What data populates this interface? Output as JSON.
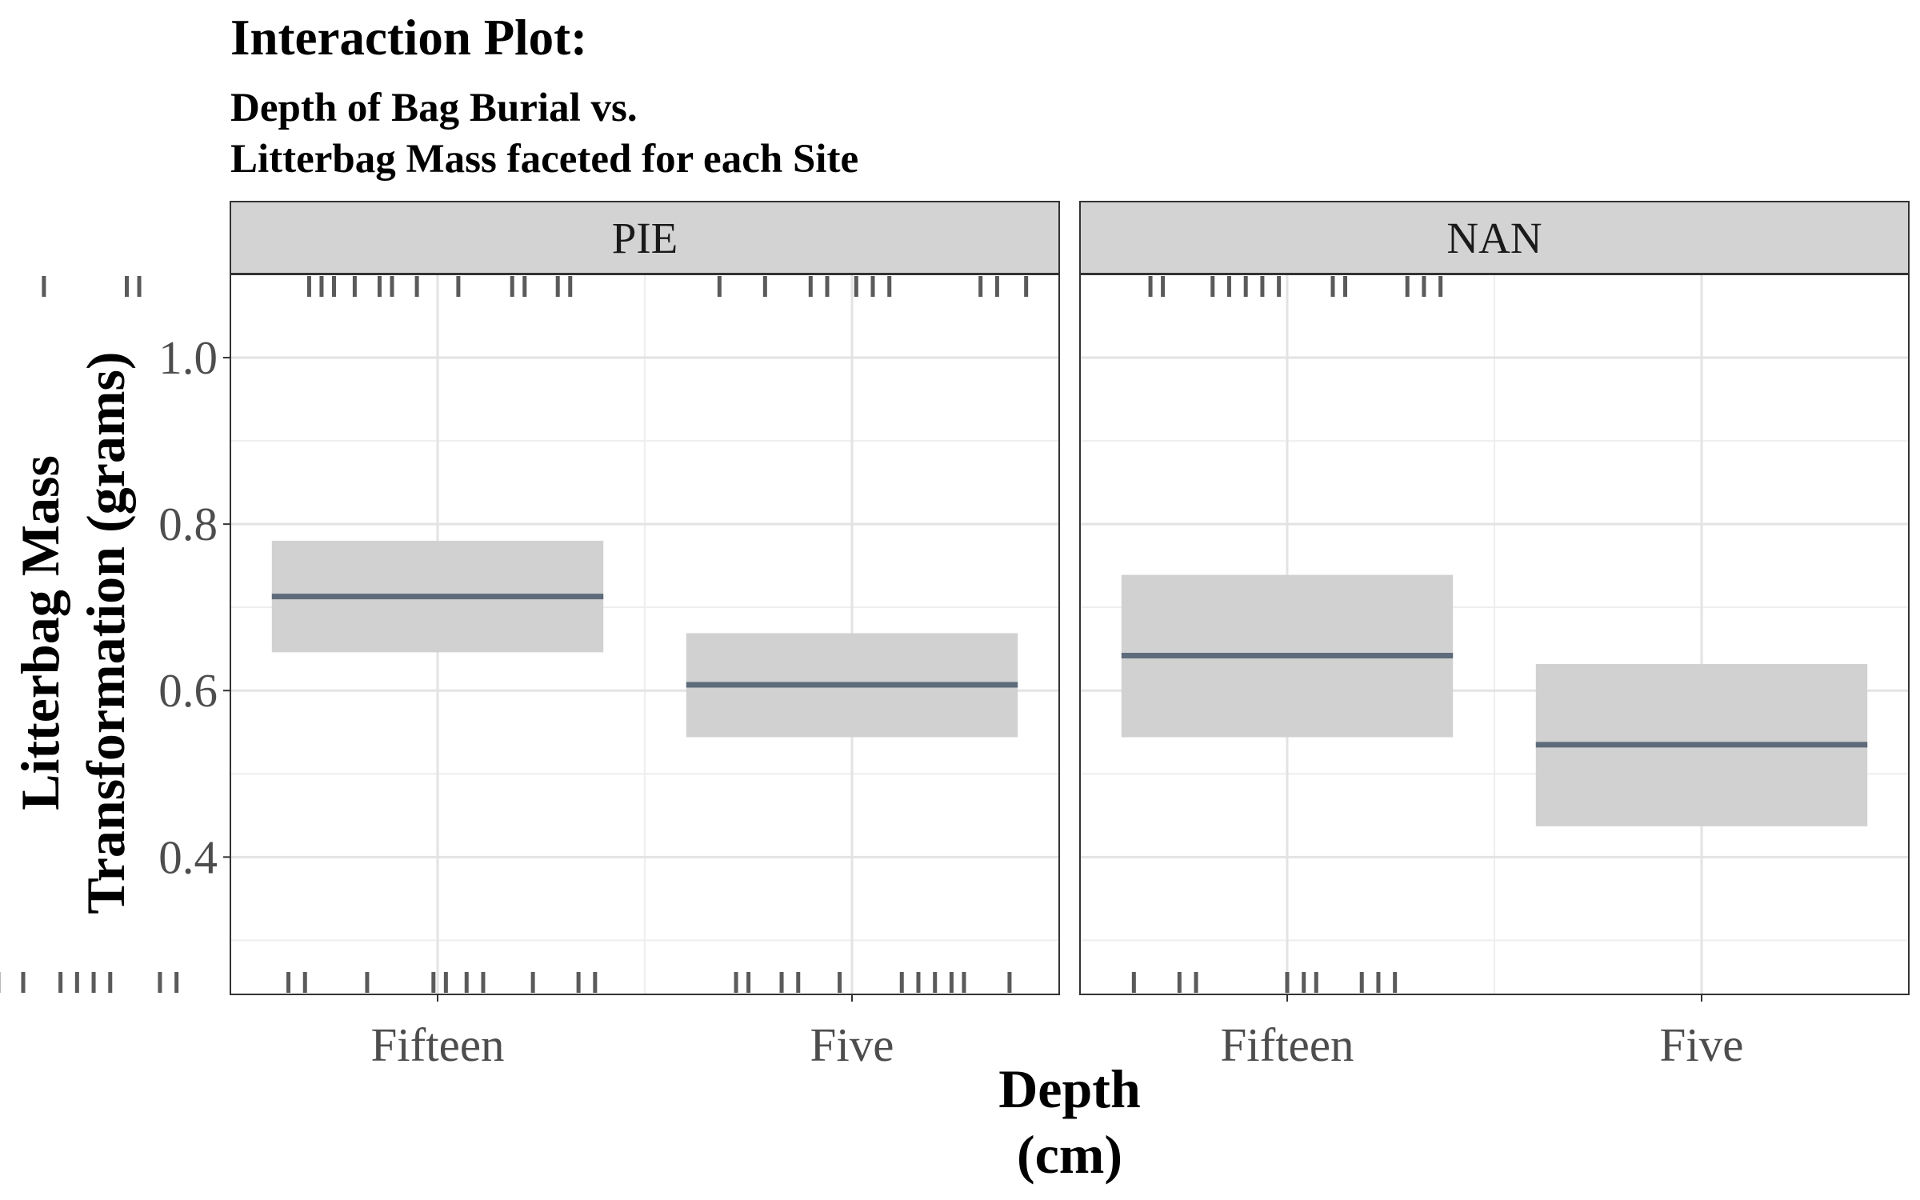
{
  "colors": {
    "panel_border": "#333333",
    "strip_fill": "#d3d3d3",
    "grid_major": "#e3e3e3",
    "grid_minor": "#eeeeee",
    "ci_band": "#d1d1d1",
    "mean_line": "#5d6b7a",
    "rug": "#5a5a5a"
  },
  "chart_data": {
    "type": "interaction",
    "title": "Interaction Plot:",
    "subtitle_lines": [
      "Depth of Bag Burial vs.",
      "Litterbag Mass faceted for each Site"
    ],
    "xlabel_lines": [
      "Depth",
      "(cm)"
    ],
    "ylabel_lines": [
      "Litterbag Mass",
      "Transformation (grams)"
    ],
    "categories": [
      "Fifteen",
      "Five"
    ],
    "ylim": [
      0.235,
      1.1
    ],
    "y_ticks": [
      0.4,
      0.6,
      0.8,
      1.0
    ],
    "y_tick_labels": [
      "0.4",
      "0.6",
      "0.8",
      "1.0"
    ],
    "grid": true,
    "facets": [
      {
        "name": "PIE",
        "points": [
          {
            "category": "Fifteen",
            "mean": 0.713,
            "lower": 0.646,
            "upper": 0.78
          },
          {
            "category": "Five",
            "mean": 0.607,
            "lower": 0.544,
            "upper": 0.669
          }
        ],
        "rug_top": [
          -0.37,
          -0.27,
          -0.24,
          0.05,
          0.25,
          0.28,
          0.69,
          0.72,
          0.75,
          0.8,
          0.86,
          0.89,
          0.95,
          1.05,
          1.18,
          1.21,
          1.29,
          1.32
        ],
        "rug_bottom": [
          -0.33,
          -0.21,
          -0.18,
          -0.14,
          -0.1,
          -0.06,
          0.0,
          0.09,
          0.13,
          0.17,
          0.21,
          0.33,
          0.37,
          0.64,
          0.68,
          0.83,
          0.99,
          1.02,
          1.07,
          1.11,
          1.23,
          1.34,
          1.38
        ]
      },
      {
        "name": "NAN",
        "points": [
          {
            "category": "Fifteen",
            "mean": 0.642,
            "lower": 0.544,
            "upper": 0.739
          },
          {
            "category": "Five",
            "mean": 0.535,
            "lower": 0.437,
            "upper": 0.632
          }
        ],
        "rug_top": [
          -0.37,
          -0.26,
          -0.15,
          -0.11,
          -0.04,
          0.0,
          0.04,
          0.26,
          0.3,
          0.37,
          0.67,
          0.7,
          0.82,
          0.86,
          0.9,
          0.94,
          0.98,
          1.11,
          1.14,
          1.29,
          1.33,
          1.37
        ],
        "rug_bottom": [
          -0.33,
          -0.3,
          -0.22,
          -0.18,
          -0.08,
          0.07,
          0.11,
          0.15,
          0.19,
          0.22,
          0.33,
          0.63,
          0.74,
          0.78,
          1.0,
          1.04,
          1.07,
          1.18,
          1.22,
          1.26
        ]
      }
    ]
  }
}
